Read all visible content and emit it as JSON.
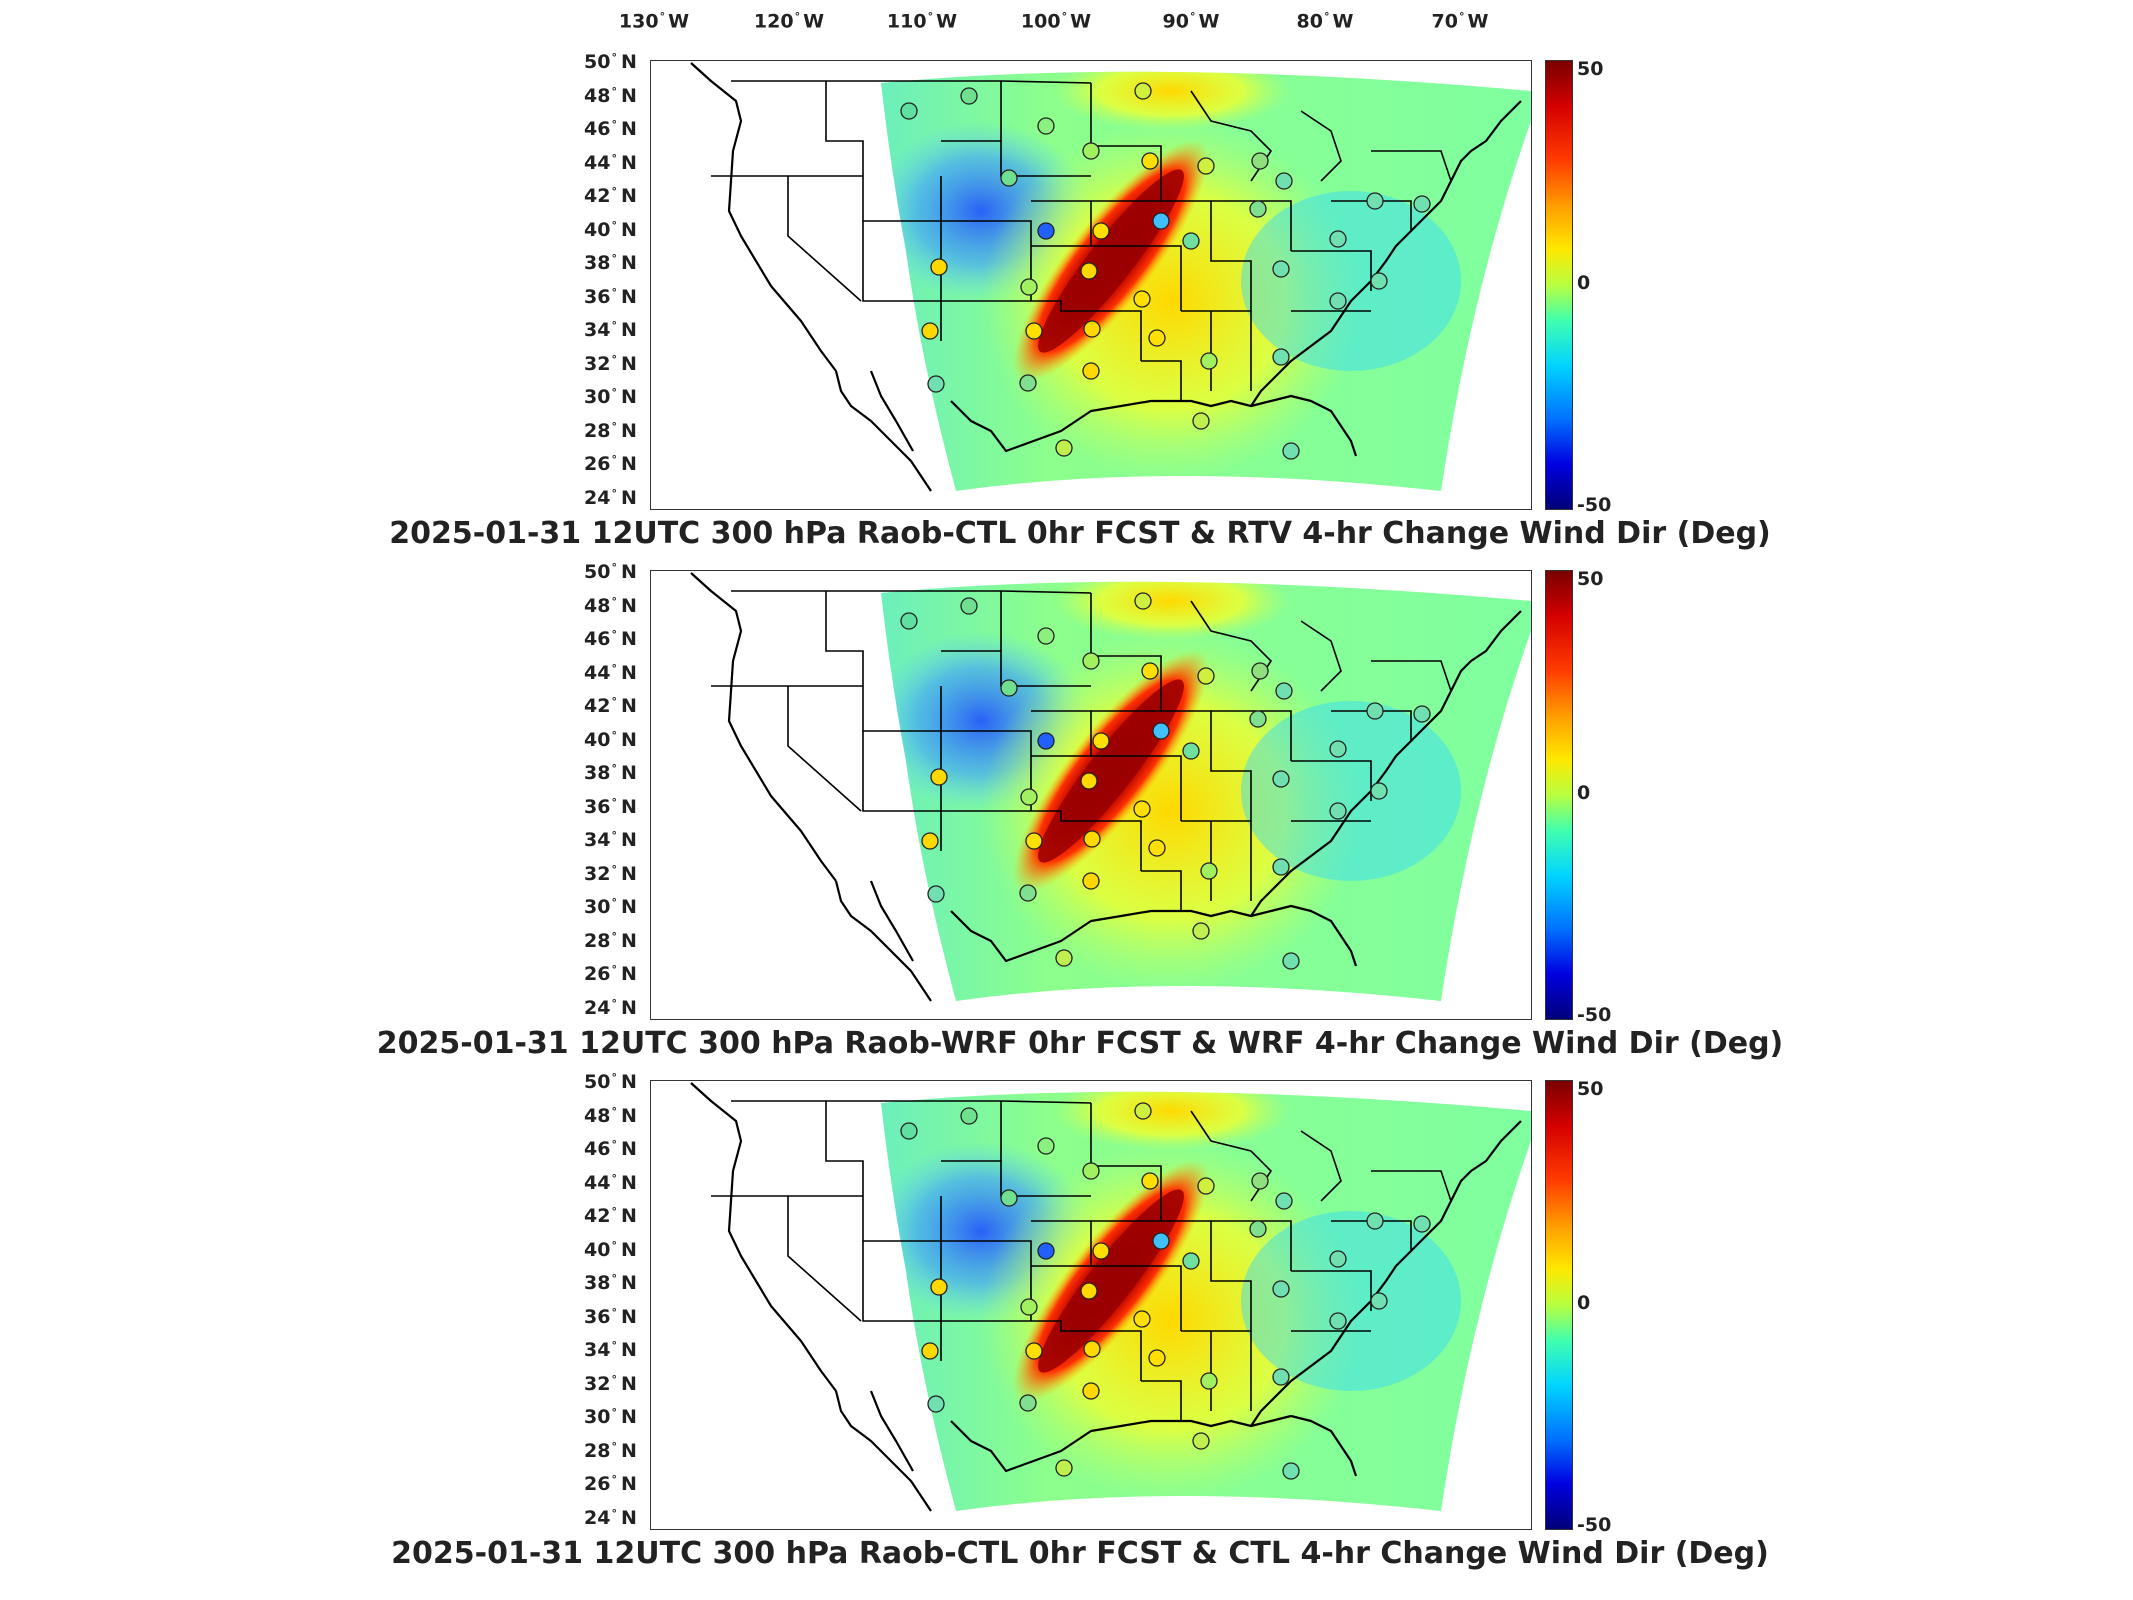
{
  "lon_labels": [
    {
      "deg": "130",
      "hemi": "W"
    },
    {
      "deg": "120",
      "hemi": "W"
    },
    {
      "deg": "110",
      "hemi": "W"
    },
    {
      "deg": "100",
      "hemi": "W"
    },
    {
      "deg": "90",
      "hemi": "W"
    },
    {
      "deg": "80",
      "hemi": "W"
    },
    {
      "deg": "70",
      "hemi": "W"
    }
  ],
  "lat_labels": [
    {
      "deg": "50",
      "hemi": "N"
    },
    {
      "deg": "48",
      "hemi": "N"
    },
    {
      "deg": "46",
      "hemi": "N"
    },
    {
      "deg": "44",
      "hemi": "N"
    },
    {
      "deg": "42",
      "hemi": "N"
    },
    {
      "deg": "40",
      "hemi": "N"
    },
    {
      "deg": "38",
      "hemi": "N"
    },
    {
      "deg": "36",
      "hemi": "N"
    },
    {
      "deg": "34",
      "hemi": "N"
    },
    {
      "deg": "32",
      "hemi": "N"
    },
    {
      "deg": "30",
      "hemi": "N"
    },
    {
      "deg": "28",
      "hemi": "N"
    },
    {
      "deg": "26",
      "hemi": "N"
    },
    {
      "deg": "24",
      "hemi": "N"
    }
  ],
  "colorbar": {
    "max": "50",
    "mid": "0",
    "min": "-50"
  },
  "panels": [
    {
      "title": "2025-01-31 12UTC 300 hPa Raob-CTL 0hr FCST & RTV 4-hr Change Wind Dir (Deg)"
    },
    {
      "title": "2025-01-31 12UTC 300 hPa Raob-WRF 0hr FCST & WRF 4-hr Change Wind Dir (Deg)"
    },
    {
      "title": "2025-01-31 12UTC 300 hPa Raob-CTL 0hr FCST & CTL 4-hr Change Wind Dir (Deg)"
    }
  ]
}
